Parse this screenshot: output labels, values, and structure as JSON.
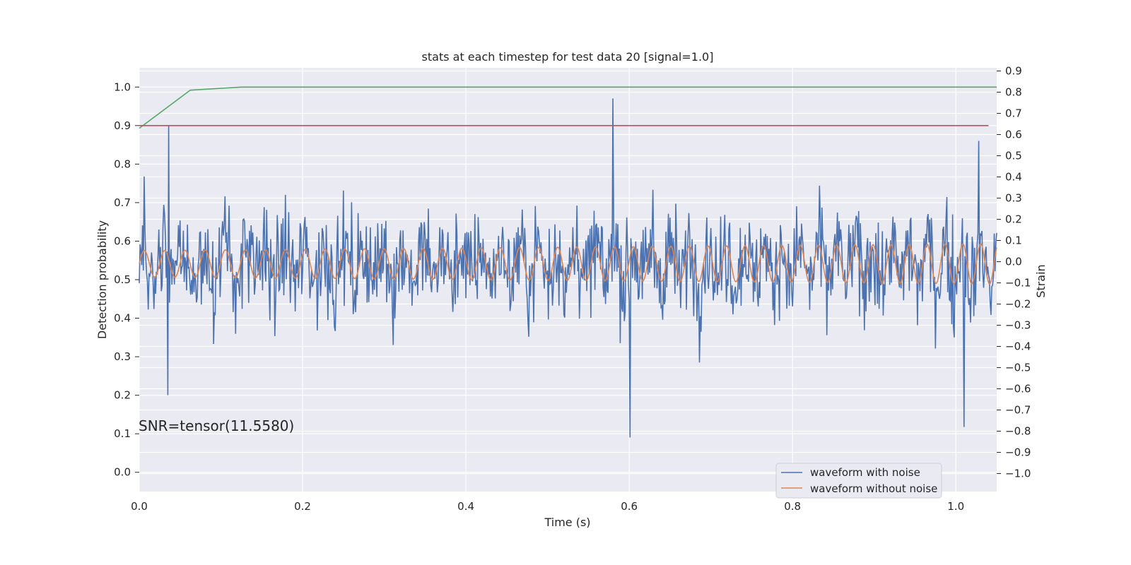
{
  "chart_data": {
    "type": "line",
    "title": "stats at each timestep for test data 20 [signal=1.0]",
    "xlabel": "Time (s)",
    "ylabel": "Detection probability",
    "ylabel_right": "Strain",
    "annotation": "SNR=tensor(11.5580)",
    "xlim": [
      0.0,
      1.05
    ],
    "ylim": [
      -0.05,
      1.05
    ],
    "ylim_right": [
      -1.085,
      0.915
    ],
    "x_ticks": [
      "0.0",
      "0.2",
      "0.4",
      "0.6",
      "0.8",
      "1.0"
    ],
    "y_ticks": [
      "0.0",
      "0.1",
      "0.2",
      "0.3",
      "0.4",
      "0.5",
      "0.6",
      "0.7",
      "0.8",
      "0.9",
      "1.0"
    ],
    "y_right_ticks": [
      "−1.0",
      "−0.9",
      "−0.8",
      "−0.7",
      "−0.6",
      "−0.5",
      "−0.4",
      "−0.3",
      "−0.2",
      "−0.1",
      "0.0",
      "0.1",
      "0.2",
      "0.3",
      "0.4",
      "0.5",
      "0.6",
      "0.7",
      "0.8",
      "0.9"
    ],
    "grid": true,
    "legend_position": "lower-right",
    "legend": [
      "waveform with noise",
      "waveform without noise"
    ],
    "colors": {
      "background": "#eaeaf2",
      "grid": "#ffffff",
      "waveform_with_noise": "#4c72b0",
      "waveform_without_noise": "#dd8452",
      "detection_probability": "#55a868",
      "threshold": "#c44e52"
    },
    "series": [
      {
        "axis": "left",
        "color": "#55a868",
        "x": [
          0.0,
          0.0625,
          0.125,
          0.1875,
          0.25,
          0.3125,
          0.375,
          0.4375,
          0.5,
          0.5625,
          0.625,
          0.6875,
          0.75,
          0.8125,
          0.875,
          0.9375,
          1.0,
          1.05
        ],
        "values": [
          0.893,
          0.992,
          1.0,
          1.0,
          1.0,
          1.0,
          1.0,
          1.0,
          1.0,
          1.0,
          1.0,
          1.0,
          1.0,
          1.0,
          1.0,
          1.0,
          1.0,
          1.0
        ]
      },
      {
        "axis": "left",
        "color": "#c44e52",
        "x": [
          0.0,
          1.04
        ],
        "values": [
          0.9,
          0.9
        ]
      },
      {
        "name": "waveform without noise",
        "axis": "right",
        "color": "#dd8452",
        "x_start": 0.0,
        "x_end": 1.05,
        "freq_start_hz": 40,
        "freq_end_hz": 46,
        "amplitude_start": 0.062,
        "amplitude_end": 0.095,
        "offset": -0.01
      },
      {
        "name": "waveform with noise",
        "axis": "right",
        "color": "#4c72b0",
        "x_start": 0.0,
        "x_end": 1.05,
        "noise_peaks": [
          {
            "x": 0.035,
            "value": -0.63
          },
          {
            "x": 0.036,
            "value": 0.64
          },
          {
            "x": 0.58,
            "value": 0.77
          },
          {
            "x": 0.601,
            "value": -0.83
          },
          {
            "x": 1.01,
            "value": -0.78
          },
          {
            "x": 1.028,
            "value": 0.57
          }
        ]
      }
    ]
  }
}
